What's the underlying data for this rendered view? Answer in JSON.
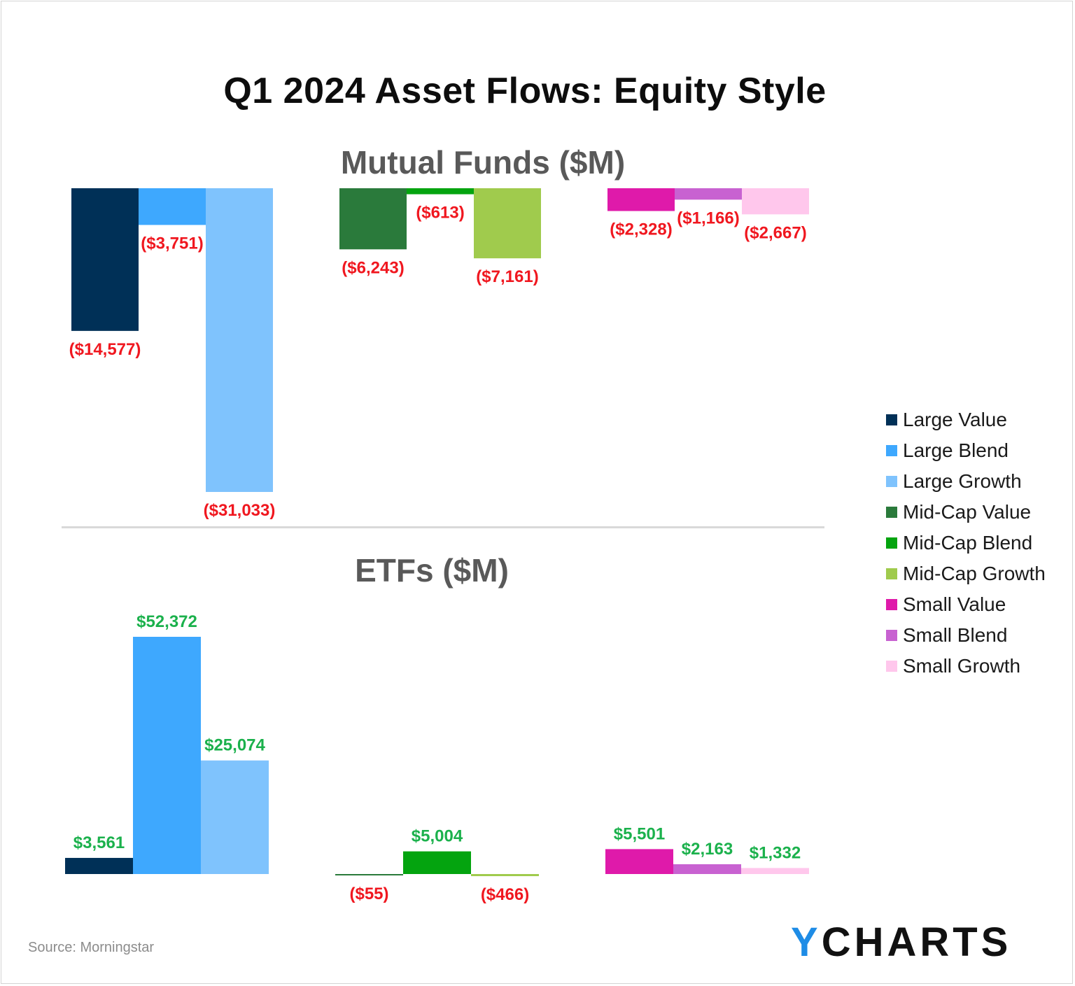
{
  "title": "Q1 2024 Asset Flows: Equity Style",
  "source": "Source: Morningstar",
  "logo": {
    "accent": "Y",
    "rest": "CHARTS"
  },
  "legend": [
    {
      "label": "Large Value",
      "color": "#003057"
    },
    {
      "label": "Large Blend",
      "color": "#3ea8fe"
    },
    {
      "label": "Large Growth",
      "color": "#7fc3fd"
    },
    {
      "label": "Mid-Cap Value",
      "color": "#2a7a3b"
    },
    {
      "label": "Mid-Cap Blend",
      "color": "#04a40f"
    },
    {
      "label": "Mid-Cap Growth",
      "color": "#a0cb4d"
    },
    {
      "label": "Small Value",
      "color": "#df1aaa"
    },
    {
      "label": "Small Blend",
      "color": "#c862d1"
    },
    {
      "label": "Small Growth",
      "color": "#ffc7ec"
    }
  ],
  "label_colors": {
    "positive": "#1bb14c",
    "negative": "#f0171f"
  },
  "chart_data": [
    {
      "type": "bar",
      "title": "Mutual Funds ($M)",
      "categories": [
        "Large Value",
        "Large Blend",
        "Large Growth",
        "Mid-Cap Value",
        "Mid-Cap Blend",
        "Mid-Cap Growth",
        "Small Value",
        "Small Blend",
        "Small Growth"
      ],
      "values": [
        -14577,
        -3751,
        -31033,
        -6243,
        -613,
        -7161,
        -2328,
        -1166,
        -2667
      ],
      "data_labels": [
        "($14,577)",
        "($3,751)",
        "($31,033)",
        "($6,243)",
        "($613)",
        "($7,161)",
        "($2,328)",
        "($1,166)",
        "($2,667)"
      ],
      "legend": "right"
    },
    {
      "type": "bar",
      "title": "ETFs ($M)",
      "categories": [
        "Large Value",
        "Large Blend",
        "Large Growth",
        "Mid-Cap Value",
        "Mid-Cap Blend",
        "Mid-Cap Growth",
        "Small Value",
        "Small Blend",
        "Small Growth"
      ],
      "values": [
        3561,
        52372,
        25074,
        -55,
        5004,
        -466,
        5501,
        2163,
        1332
      ],
      "data_labels": [
        "$3,561",
        "$52,372",
        "$25,074",
        "($55)",
        "$5,004",
        "($466)",
        "$5,501",
        "$2,163",
        "$1,332"
      ],
      "legend": "right"
    }
  ]
}
